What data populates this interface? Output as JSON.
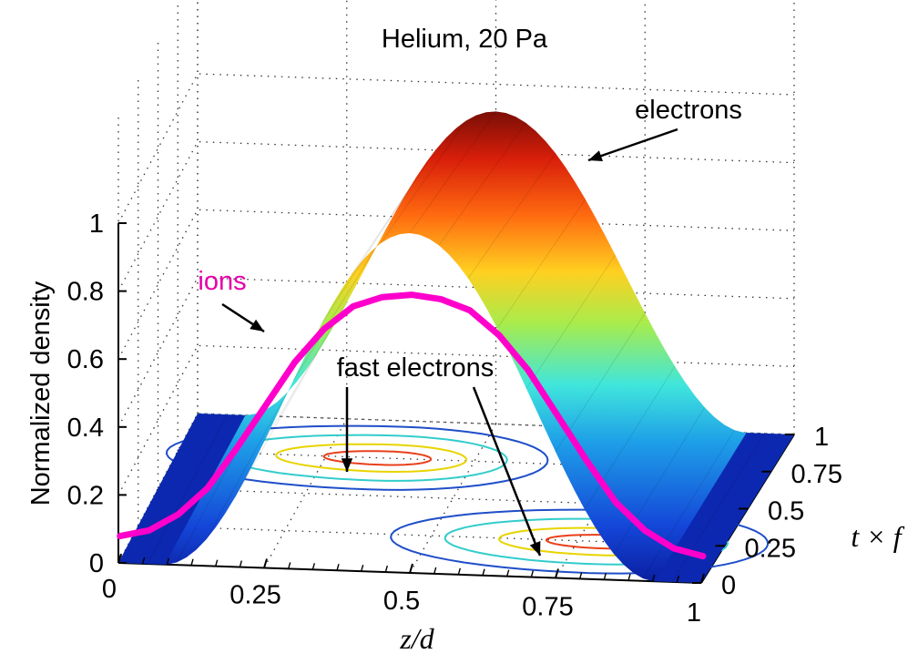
{
  "chart_data": {
    "type": "surface3d",
    "title": "Helium, 20 Pa",
    "zlabel": "Normalized density",
    "xlabel": "z/d",
    "ylabel": "t × f",
    "xlim": [
      0,
      1
    ],
    "ylim": [
      0,
      1
    ],
    "zlim": [
      0,
      1
    ],
    "x_ticks": [
      "0",
      "0.25",
      "0.5",
      "0.75",
      "1"
    ],
    "y_ticks": [
      "0",
      "0.25",
      "0.5",
      "0.75",
      "1"
    ],
    "z_ticks": [
      "0",
      "0.2",
      "0.4",
      "0.6",
      "0.8",
      "1"
    ],
    "grid": true,
    "colormap": "jet",
    "series": [
      {
        "name": "electrons",
        "kind": "surface",
        "description": "normalized electron density over z/d and t×f",
        "x": [
          0,
          0.05,
          0.1,
          0.15,
          0.2,
          0.25,
          0.3,
          0.35,
          0.4,
          0.45,
          0.5,
          0.55,
          0.6,
          0.65,
          0.7,
          0.75,
          0.8,
          0.85,
          0.9,
          0.95,
          1
        ],
        "z_at_t0": [
          0.0,
          0.0,
          0.02,
          0.12,
          0.35,
          0.58,
          0.74,
          0.85,
          0.93,
          0.98,
          1.0,
          0.98,
          0.93,
          0.85,
          0.74,
          0.58,
          0.35,
          0.12,
          0.02,
          0.0,
          0.0
        ]
      },
      {
        "name": "ions",
        "kind": "curve",
        "color": "#ff00cc",
        "x": [
          0,
          0.05,
          0.1,
          0.15,
          0.2,
          0.25,
          0.3,
          0.35,
          0.4,
          0.45,
          0.5,
          0.55,
          0.6,
          0.65,
          0.7,
          0.75,
          0.8,
          0.85,
          0.9,
          0.95,
          1
        ],
        "z": [
          0.07,
          0.09,
          0.14,
          0.22,
          0.34,
          0.47,
          0.6,
          0.7,
          0.77,
          0.8,
          0.81,
          0.8,
          0.77,
          0.7,
          0.6,
          0.47,
          0.34,
          0.22,
          0.14,
          0.09,
          0.07
        ]
      },
      {
        "name": "fast electrons",
        "kind": "contour",
        "levels_colors": [
          "#1f4ec8",
          "#33cccc",
          "#e8d400",
          "#e8401a"
        ],
        "peaks": [
          {
            "x": 0.35,
            "t": 0.75
          },
          {
            "x": 0.8,
            "t": 0.25
          }
        ]
      }
    ],
    "annotations": [
      {
        "text": "electrons",
        "color": "#000000"
      },
      {
        "text": "ions",
        "color": "#e600a8"
      },
      {
        "text": "fast electrons",
        "color": "#000000"
      }
    ]
  }
}
